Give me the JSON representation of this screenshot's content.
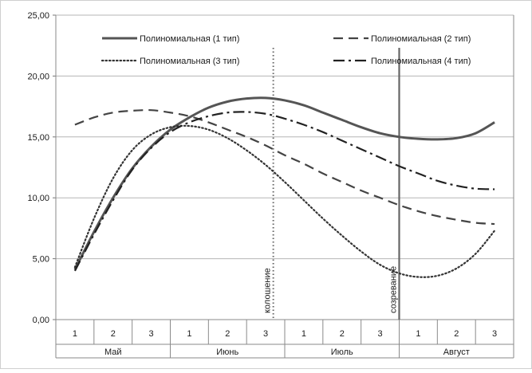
{
  "chart_data": {
    "type": "line",
    "title": "",
    "xlabel": "",
    "ylabel": "",
    "ylim": [
      0,
      25
    ],
    "y_ticks": [
      "0,00",
      "5,00",
      "10,00",
      "15,00",
      "20,00",
      "25,00"
    ],
    "y_tick_values": [
      0,
      5,
      10,
      15,
      20,
      25
    ],
    "grid": "horizontal",
    "legend_position": "top",
    "categories": [
      "1",
      "2",
      "3",
      "1",
      "2",
      "3",
      "1",
      "2",
      "3",
      "1",
      "2",
      "3"
    ],
    "groups": [
      {
        "label": "Май",
        "span": 3
      },
      {
        "label": "Июнь",
        "span": 3
      },
      {
        "label": "Июль",
        "span": 3
      },
      {
        "label": "Август",
        "span": 3
      }
    ],
    "series": [
      {
        "name": "Полиномиальная (1 тип)",
        "style": "solid",
        "color": "#555555",
        "x": [
          1,
          1.5,
          2,
          2.5,
          3,
          3.5,
          4,
          4.5,
          5,
          5.5,
          6,
          6.5,
          7,
          7.5,
          8,
          8.5,
          9,
          9.5,
          10,
          10.5,
          11,
          11.5,
          12
        ],
        "values": [
          4.1,
          7.2,
          10.0,
          12.4,
          14.2,
          15.6,
          16.6,
          17.4,
          17.9,
          18.15,
          18.2,
          18.0,
          17.6,
          17.0,
          16.4,
          15.8,
          15.3,
          15.0,
          14.85,
          14.8,
          14.9,
          15.3,
          16.2
        ]
      },
      {
        "name": "Полиномиальная (2 тип)",
        "style": "dashed",
        "color": "#444444",
        "x": [
          1,
          1.5,
          2,
          2.5,
          3,
          3.5,
          4,
          4.5,
          5,
          5.5,
          6,
          6.5,
          7,
          7.5,
          8,
          8.5,
          9,
          9.5,
          10,
          10.5,
          11,
          11.5,
          12
        ],
        "values": [
          16.0,
          16.6,
          17.0,
          17.15,
          17.2,
          17.0,
          16.7,
          16.2,
          15.6,
          15.0,
          14.3,
          13.5,
          12.8,
          12.0,
          11.3,
          10.6,
          10.0,
          9.4,
          8.9,
          8.5,
          8.2,
          7.95,
          7.85
        ]
      },
      {
        "name": "Полиномиальная (3 тип)",
        "style": "dotted",
        "color": "#333333",
        "x": [
          1,
          1.5,
          2,
          2.5,
          3,
          3.5,
          4,
          4.5,
          5,
          5.5,
          6,
          6.5,
          7,
          7.5,
          8,
          8.5,
          9,
          9.5,
          10,
          10.5,
          11,
          11.5,
          12
        ],
        "values": [
          4.3,
          8.3,
          11.6,
          13.9,
          15.2,
          15.8,
          15.9,
          15.6,
          14.9,
          13.9,
          12.7,
          11.3,
          9.8,
          8.3,
          6.9,
          5.6,
          4.5,
          3.8,
          3.5,
          3.6,
          4.2,
          5.4,
          7.3
        ]
      },
      {
        "name": "Полиномиальная (4 тип)",
        "style": "dashdot",
        "color": "#222222",
        "x": [
          1,
          1.5,
          2,
          2.5,
          3,
          3.5,
          4,
          4.5,
          5,
          5.5,
          6,
          6.5,
          7,
          7.5,
          8,
          8.5,
          9,
          9.5,
          10,
          10.5,
          11,
          11.5,
          12
        ],
        "values": [
          4.0,
          7.0,
          9.8,
          12.3,
          14.1,
          15.4,
          16.2,
          16.7,
          17.0,
          17.05,
          16.9,
          16.5,
          16.0,
          15.4,
          14.7,
          14.0,
          13.3,
          12.6,
          12.0,
          11.4,
          11.0,
          10.75,
          10.7
        ]
      }
    ],
    "annotations": [
      {
        "label": "колошение",
        "x": 6.2,
        "style": "dotted"
      },
      {
        "label": "созревание",
        "x": 9.5,
        "style": "solid"
      }
    ]
  }
}
